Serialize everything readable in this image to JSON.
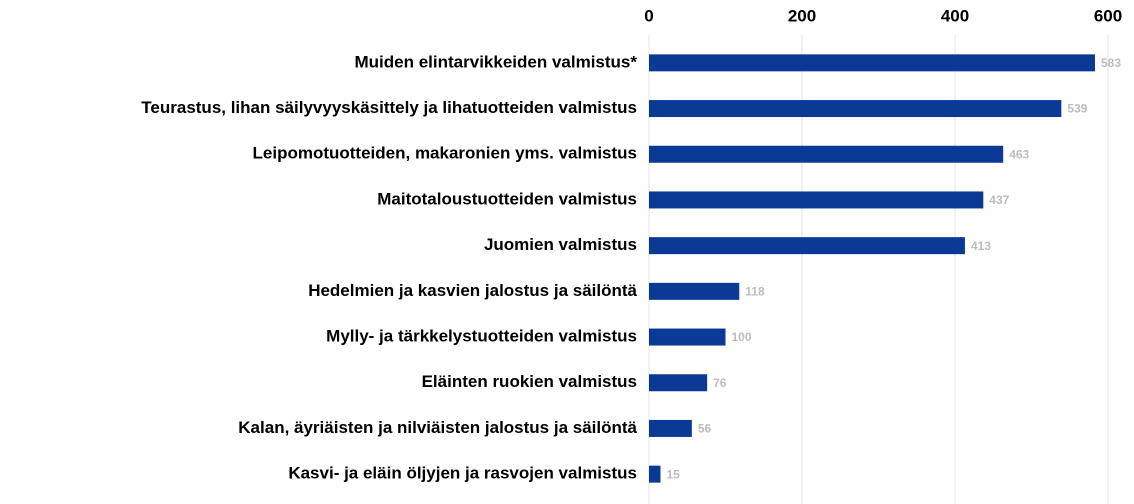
{
  "chart_data": {
    "type": "bar",
    "categories": [
      "Muiden elintarvikkeiden valmistus*",
      "Teurastus, lihan säilyvyyskäsittely ja lihatuotteiden valmistus",
      "Leipomotuotteiden, makaronien yms. valmistus",
      "Maitotaloustuotteiden valmistus",
      "Juomien valmistus",
      "Hedelmien ja kasvien jalostus ja säilöntä",
      "Mylly- ja tärkkelystuotteiden valmistus",
      "Eläinten ruokien valmistus",
      "Kalan, äyriäisten ja nilviäisten jalostus ja säilöntä",
      "Kasvi- ja eläin öljyjen ja rasvojen valmistus"
    ],
    "values": [
      583,
      539,
      463,
      437,
      413,
      118,
      100,
      76,
      56,
      15
    ],
    "color": "#0b3a96",
    "xlim": [
      0,
      600
    ],
    "xticks": [
      0,
      200,
      400,
      600
    ],
    "grid": true
  }
}
